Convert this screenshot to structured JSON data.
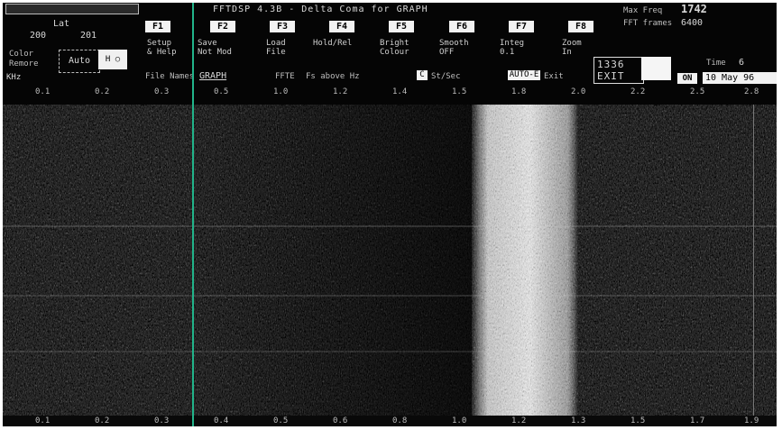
{
  "window": {
    "title": "FFTDSP 4.3B - Delta Coma for GRAPH",
    "max_freq_label": "Max Freq",
    "max_freq_value": "1742",
    "fft_frames_label": "FFT frames",
    "fft_frames_value": "6400"
  },
  "left_panel": {
    "header": "Lat",
    "left_value": "200",
    "right_value": "201",
    "color_label": "Color\nRemore",
    "color_value": "Auto",
    "color_button": "H ○"
  },
  "fkeys": [
    {
      "key": "F1",
      "label": "Setup\n& Help"
    },
    {
      "key": "F2",
      "label": "Save\nNot Mod"
    },
    {
      "key": "F3",
      "label": "Load\nFile"
    },
    {
      "key": "F4",
      "label": "Hold/Rel"
    },
    {
      "key": "F5",
      "label": "Bright\nColour"
    },
    {
      "key": "F6",
      "label": "Smooth\nOFF"
    },
    {
      "key": "F7",
      "label": "Integ\n0.1"
    },
    {
      "key": "F8",
      "label": "Zoom\nIn"
    }
  ],
  "status_row": {
    "unit_label": "KHz",
    "file_names_label": "File Names",
    "file_names_value": "GRAPH",
    "fs_label": "FFTE",
    "fs_sep": "Fs above Hz",
    "c_button": "C",
    "speed_label": "St/Sec",
    "mode_button": "AUTO-E",
    "exit_label": "Exit",
    "freq_top": "1336",
    "freq_bottom": "EXIT",
    "time_label": "Time",
    "time_value": "6",
    "on_button": "ON",
    "date_value": "10 May 96"
  },
  "top_axis_ticks": [
    "0.1",
    "0.2",
    "0.3",
    "0.5",
    "1.0",
    "1.2",
    "1.4",
    "1.5",
    "1.8",
    "2.0",
    "2.2",
    "2.5",
    "2.8"
  ],
  "bottom_axis_ticks": [
    "0.1",
    "0.2",
    "0.3",
    "0.4",
    "0.5",
    "0.6",
    "0.8",
    "1.0",
    "1.2",
    "1.3",
    "1.5",
    "1.7",
    "1.9"
  ],
  "colors": {
    "background": "#050505",
    "cursor_line": "#22b48a",
    "signal_band": "#f0f0f0"
  }
}
